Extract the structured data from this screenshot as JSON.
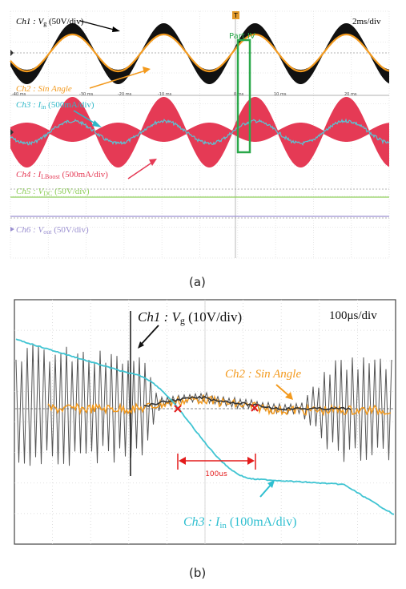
{
  "chart_data": [
    {
      "type": "line",
      "panel_caption": "(a)",
      "timebase": "2ms/div",
      "trigger_marker": "T",
      "x_ticks": [
        "-40 ms",
        "-30 ms",
        "-20 ms",
        "-10 ms",
        "0 ms",
        "10 ms",
        "20 ms"
      ],
      "annotation": "Part IV",
      "grid": true,
      "series": [
        {
          "name": "Ch1 : Vg (50V/div)",
          "color": "#000000"
        },
        {
          "name": "Ch2 : Sin Angle",
          "color": "#f39a1e"
        },
        {
          "name": "Ch3 : Iin (500mA/div)",
          "color": "#3fb6c8"
        },
        {
          "name": "Ch4 : ILBoost (500mA/div)",
          "color": "#e53a55"
        },
        {
          "name": "Ch5 : VDC (50V/div)",
          "color": "#8fcf5a"
        },
        {
          "name": "Ch6 : Vout (50V/div)",
          "color": "#9a8fd0"
        }
      ]
    },
    {
      "type": "line",
      "panel_caption": "(b)",
      "timebase": "100μs/div",
      "annotation": "100us",
      "grid": true,
      "series": [
        {
          "name": "Ch1 : Vg (10V/div)",
          "color": "#333333"
        },
        {
          "name": "Ch2 : Sin Angle",
          "color": "#f39a1e"
        },
        {
          "name": "Ch3 : Iin (100mA/div)",
          "color": "#3fc4d2"
        }
      ]
    }
  ],
  "labels": {
    "a": {
      "ch1_pre": "Ch1 : ",
      "ch1_sym": "V",
      "ch1_sub": "g",
      "ch1_post": " (50V/div)",
      "ch2": "Ch2 : Sin Angle",
      "ch3_pre": "Ch3 : ",
      "ch3_sym": "I",
      "ch3_sub": "in",
      "ch3_post": " (500mA/div)",
      "ch4_pre": "Ch4 : ",
      "ch4_sym": "I",
      "ch4_sub": "LBoost",
      "ch4_post": " (500mA/div)",
      "ch5_pre": "Ch5 : ",
      "ch5_sym": "V",
      "ch5_sub": "DC",
      "ch5_post": " (50V/div)",
      "ch6_pre": "Ch6 : ",
      "ch6_sym": "V",
      "ch6_sub": "out",
      "ch6_post": " (50V/div)"
    },
    "b": {
      "ch1_pre": "Ch1 : ",
      "ch1_sym": "V",
      "ch1_sub": "g",
      "ch1_post": " (10V/div)",
      "ch2": "Ch2 : Sin Angle",
      "ch3_pre": "Ch3 : ",
      "ch3_sym": "I",
      "ch3_sub": "in",
      "ch3_post": " (100mA/div)"
    }
  }
}
